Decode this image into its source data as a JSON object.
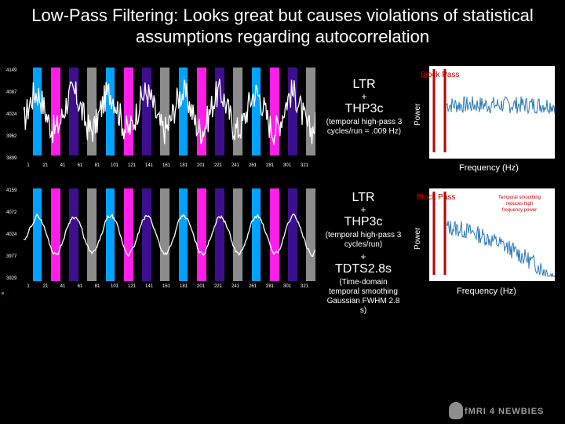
{
  "title": {
    "line1": "Low-Pass Filtering: Looks great but causes violations of statistical",
    "line2": "assumptions regarding autocorrelation"
  },
  "colors": {
    "background": "#000000",
    "cyan": "#00a2ff",
    "magenta": "#ff1ee8",
    "purple": "#3d0f8e",
    "gray": "#8c8c8c",
    "red": "#c00000",
    "trace": "#ffffff",
    "spectrum": "#2a7ab8"
  },
  "panel_top": {
    "yticks": [
      "4149",
      "4087",
      "4024",
      "3962",
      "3899"
    ],
    "xticks": [
      "1",
      "21",
      "41",
      "61",
      "81",
      "101",
      "121",
      "141",
      "161",
      "181",
      "201",
      "221",
      "241",
      "261",
      "281",
      "301",
      "321"
    ],
    "caption": {
      "ltr": "LTR",
      "plus": "+",
      "thp": "THP3c",
      "detail": "(temporal high-pass 3 cycles/run = .009 Hz)"
    },
    "spectrum": {
      "block_pass": "Block  Pass",
      "ylabel": "Power",
      "xlabel": "Frequency (Hz)"
    }
  },
  "panel_bottom": {
    "yticks": [
      "4159",
      "4072",
      "4024",
      "3977",
      "3929"
    ],
    "xticks": [
      "1",
      "21",
      "41",
      "61",
      "81",
      "101",
      "121",
      "141",
      "161",
      "181",
      "201",
      "221",
      "241",
      "261",
      "281",
      "301",
      "321"
    ],
    "caption": {
      "ltr": "LTR",
      "plus1": "+",
      "thp": "THP3c",
      "detail": "(temporal high-pass 3 cycles/run)",
      "plus2": "+",
      "tdts": "TDTS2.8s",
      "detail2": "(Time-domain temporal smoothing Gaussian FWHM 2.8 s)"
    },
    "spectrum": {
      "block_pass": "Block  Pass",
      "ylabel": "Power",
      "xlabel": "Frequency (Hz)",
      "note": "Temporal smoothing reduces high frequency power"
    }
  },
  "logo": {
    "text": "fMRI 4 NEWBIES",
    "icon": "skull-icon"
  }
}
